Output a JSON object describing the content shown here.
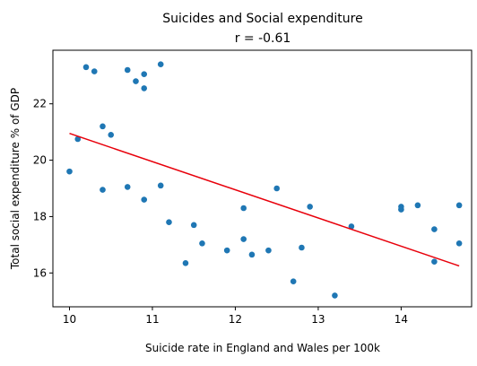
{
  "chart_data": {
    "type": "scatter",
    "title": "Suicides and Social expenditure",
    "subtitle": "r = -0.61",
    "xlabel": "Suicide rate in England and Wales per 100k",
    "ylabel": "Total social expenditure % of GDP",
    "xlim": [
      9.8,
      14.85
    ],
    "ylim": [
      14.8,
      23.9
    ],
    "xticks": [
      10,
      11,
      12,
      13,
      14
    ],
    "yticks": [
      16,
      18,
      20,
      22
    ],
    "grid": false,
    "legend": "none",
    "colors": {
      "points": "#1f77b4",
      "trend": "#e8000b"
    },
    "points": [
      {
        "x": 10.0,
        "y": 19.6
      },
      {
        "x": 10.1,
        "y": 20.75
      },
      {
        "x": 10.2,
        "y": 23.3
      },
      {
        "x": 10.3,
        "y": 23.15
      },
      {
        "x": 10.4,
        "y": 21.2
      },
      {
        "x": 10.4,
        "y": 18.95
      },
      {
        "x": 10.5,
        "y": 20.9
      },
      {
        "x": 10.7,
        "y": 23.2
      },
      {
        "x": 10.7,
        "y": 19.05
      },
      {
        "x": 10.8,
        "y": 22.8
      },
      {
        "x": 10.9,
        "y": 23.05
      },
      {
        "x": 10.9,
        "y": 22.55
      },
      {
        "x": 10.9,
        "y": 18.6
      },
      {
        "x": 11.1,
        "y": 23.4
      },
      {
        "x": 11.1,
        "y": 19.1
      },
      {
        "x": 11.2,
        "y": 17.8
      },
      {
        "x": 11.4,
        "y": 16.35
      },
      {
        "x": 11.5,
        "y": 17.7
      },
      {
        "x": 11.6,
        "y": 17.05
      },
      {
        "x": 11.9,
        "y": 16.8
      },
      {
        "x": 12.1,
        "y": 18.3
      },
      {
        "x": 12.1,
        "y": 17.2
      },
      {
        "x": 12.2,
        "y": 16.65
      },
      {
        "x": 12.4,
        "y": 16.8
      },
      {
        "x": 12.5,
        "y": 19.0
      },
      {
        "x": 12.7,
        "y": 15.7
      },
      {
        "x": 12.8,
        "y": 16.9
      },
      {
        "x": 12.9,
        "y": 18.35
      },
      {
        "x": 13.2,
        "y": 15.2
      },
      {
        "x": 13.4,
        "y": 17.65
      },
      {
        "x": 14.0,
        "y": 18.35
      },
      {
        "x": 14.0,
        "y": 18.25
      },
      {
        "x": 14.2,
        "y": 18.4
      },
      {
        "x": 14.4,
        "y": 17.55
      },
      {
        "x": 14.4,
        "y": 16.4
      },
      {
        "x": 14.7,
        "y": 18.4
      },
      {
        "x": 14.7,
        "y": 17.05
      }
    ],
    "trendline": {
      "x": [
        10.0,
        14.7
      ],
      "y": [
        20.95,
        16.25
      ]
    }
  }
}
